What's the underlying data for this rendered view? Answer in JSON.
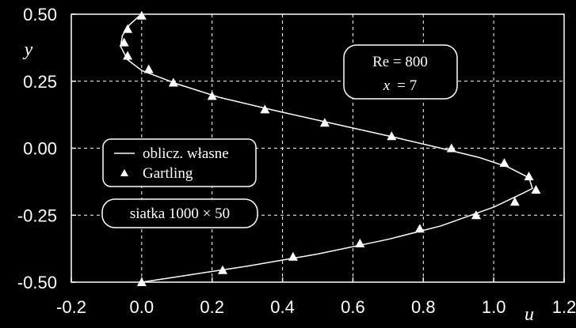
{
  "chart_data": {
    "type": "line",
    "xlabel": "u",
    "ylabel": "y",
    "xlim": [
      -0.2,
      1.2
    ],
    "ylim": [
      -0.5,
      0.5
    ],
    "x_ticks": [
      -0.2,
      0.0,
      0.2,
      0.4,
      0.6,
      0.8,
      1.0,
      1.2
    ],
    "x_tick_labels": [
      "-0.2",
      "0.0",
      "0.2",
      "0.4",
      "0.6",
      "0.8",
      "1.0",
      "1.2"
    ],
    "y_ticks": [
      0.5,
      0.25,
      0.0,
      -0.25,
      -0.5
    ],
    "y_tick_labels": [
      "0.50",
      "0.25",
      "0.00",
      "-0.25",
      "-0.50"
    ],
    "grid": true,
    "legend_position": "middle-left",
    "series": [
      {
        "name": "oblicz. własne",
        "style": "line",
        "color": "#ffffff",
        "x": [
          0.0,
          0.1,
          0.3,
          0.5,
          0.7,
          0.85,
          1.0,
          1.08,
          1.11,
          1.1,
          1.04,
          0.96,
          0.85,
          0.72,
          0.55,
          0.38,
          0.22,
          0.1,
          0.0,
          -0.04,
          -0.06,
          -0.055,
          -0.035,
          -0.01,
          0.0
        ],
        "y": [
          -0.5,
          -0.48,
          -0.44,
          -0.395,
          -0.34,
          -0.29,
          -0.22,
          -0.17,
          -0.15,
          -0.11,
          -0.07,
          -0.035,
          0.0,
          0.04,
          0.09,
          0.14,
          0.19,
          0.24,
          0.29,
          0.33,
          0.38,
          0.42,
          0.46,
          0.49,
          0.5
        ]
      },
      {
        "name": "Gartling",
        "style": "marker-triangle",
        "color": "#ffffff",
        "x": [
          0.0,
          0.23,
          0.43,
          0.62,
          0.79,
          0.95,
          1.06,
          1.12,
          1.1,
          1.03,
          0.88,
          0.71,
          0.52,
          0.35,
          0.2,
          0.09,
          0.02,
          -0.04,
          -0.05,
          -0.04,
          0.0
        ],
        "y": [
          -0.5,
          -0.455,
          -0.405,
          -0.355,
          -0.3,
          -0.25,
          -0.2,
          -0.155,
          -0.105,
          -0.055,
          0.0,
          0.045,
          0.095,
          0.145,
          0.195,
          0.245,
          0.295,
          0.345,
          0.395,
          0.445,
          0.495
        ]
      }
    ],
    "annotations": {
      "params": {
        "re_line": "Re = 800",
        "x_label": "x",
        "x_value": "= 7"
      },
      "legend_line_label": "oblicz. własne",
      "legend_marker_label": "Gartling",
      "grid_info": "siatka 1000 × 50"
    }
  }
}
